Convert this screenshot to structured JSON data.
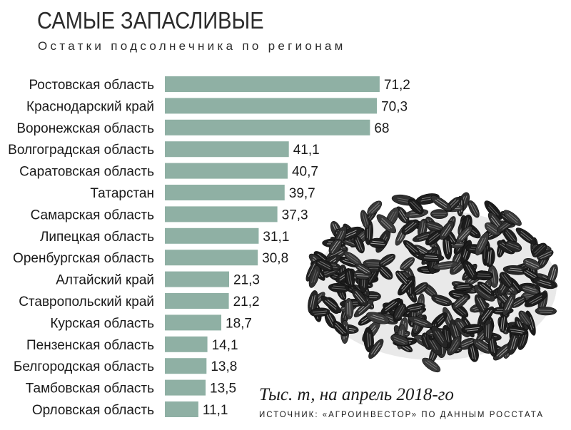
{
  "header": {
    "title": "САМЫЕ ЗАПАСЛИВЫЕ",
    "subtitle": "Остатки подсолнечника по регионам"
  },
  "footer": {
    "unit_note": "Тыс. т, на апрель 2018-го",
    "source": "ИСТОЧНИК: «АГРОИНВЕСТОР» ПО ДАННЫМ РОССТАТА"
  },
  "colors": {
    "bar": "#8fb0a4",
    "text": "#1a1a1a"
  },
  "decor": {
    "image": "sunflower-seeds-pile"
  },
  "chart_data": {
    "type": "bar",
    "orientation": "horizontal",
    "title": "САМЫЕ ЗАПАСЛИВЫЕ",
    "subtitle": "Остатки подсолнечника по регионам",
    "categories": [
      "Ростовская область",
      "Краснодарский край",
      "Воронежская область",
      "Волгоградская область",
      "Саратовская область",
      "Татарстан",
      "Самарская область",
      "Липецкая область",
      "Оренбургская область",
      "Алтайский край",
      "Ставропольский край",
      "Курская область",
      "Пензенская область",
      "Белгородская область",
      "Тамбовская область",
      "Орловская область"
    ],
    "values": [
      71.2,
      70.3,
      68,
      41.1,
      40.7,
      39.7,
      37.3,
      31.1,
      30.8,
      21.3,
      21.2,
      18.7,
      14.1,
      13.8,
      13.5,
      11.1
    ],
    "value_labels": [
      "71,2",
      "70,3",
      "68",
      "41,1",
      "40,7",
      "39,7",
      "37,3",
      "31,1",
      "30,8",
      "21,3",
      "21,2",
      "18,7",
      "14,1",
      "13,8",
      "13,5",
      "11,1"
    ],
    "grid": false,
    "legend": "none"
  }
}
